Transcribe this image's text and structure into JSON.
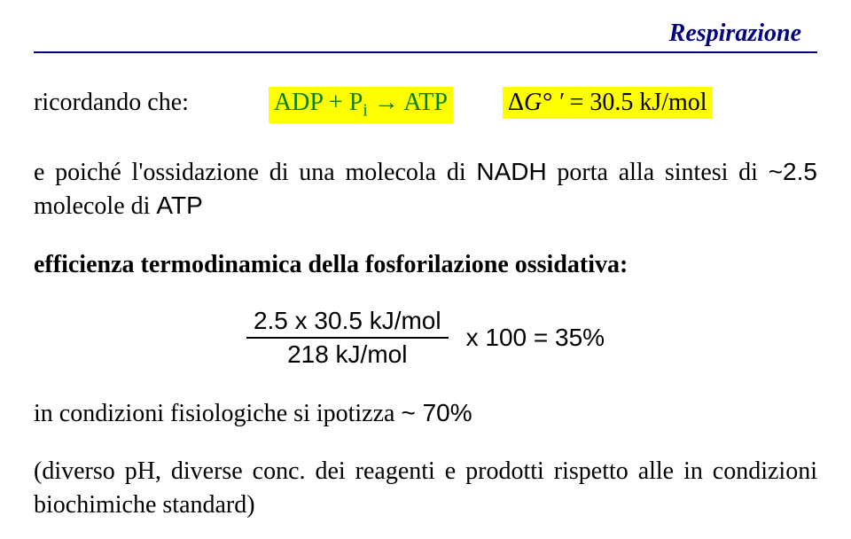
{
  "header": {
    "title": "Respirazione"
  },
  "line1": {
    "ricord": "ricordando che:",
    "eq_left": "ADP + P",
    "eq_sub": "i",
    "eq_arrow": " → ",
    "eq_right": "ATP",
    "dg_prefix": "Δ",
    "dg_symbol": "G° ′",
    "dg_rest": " = 30.5 kJ/mol"
  },
  "para1": {
    "pre": "e poiché l'ossidazione di una molecola di ",
    "nadh": "NADH",
    "mid": " porta alla sintesi di ",
    "approx": "~2.5",
    "post": " molecole di ",
    "atp": "ATP"
  },
  "eff": {
    "label": "efficienza termodinamica della fosforilazione ossidativa:"
  },
  "frac": {
    "num": "2.5 x 30.5 kJ/mol",
    "den": "218 kJ/mol",
    "rest": "x 100 = 35%"
  },
  "fis": {
    "pre": "in condizioni fisiologiche si ipotizza ",
    "val": "~ 70%"
  },
  "foot": {
    "text": "(diverso pH, diverse conc. dei reagenti e prodotti rispetto alle in condizioni biochimiche standard)"
  },
  "colors": {
    "accent": "#000080",
    "highlight": "#ffff00",
    "eq_green": "#008000",
    "bg": "#ffffff"
  }
}
